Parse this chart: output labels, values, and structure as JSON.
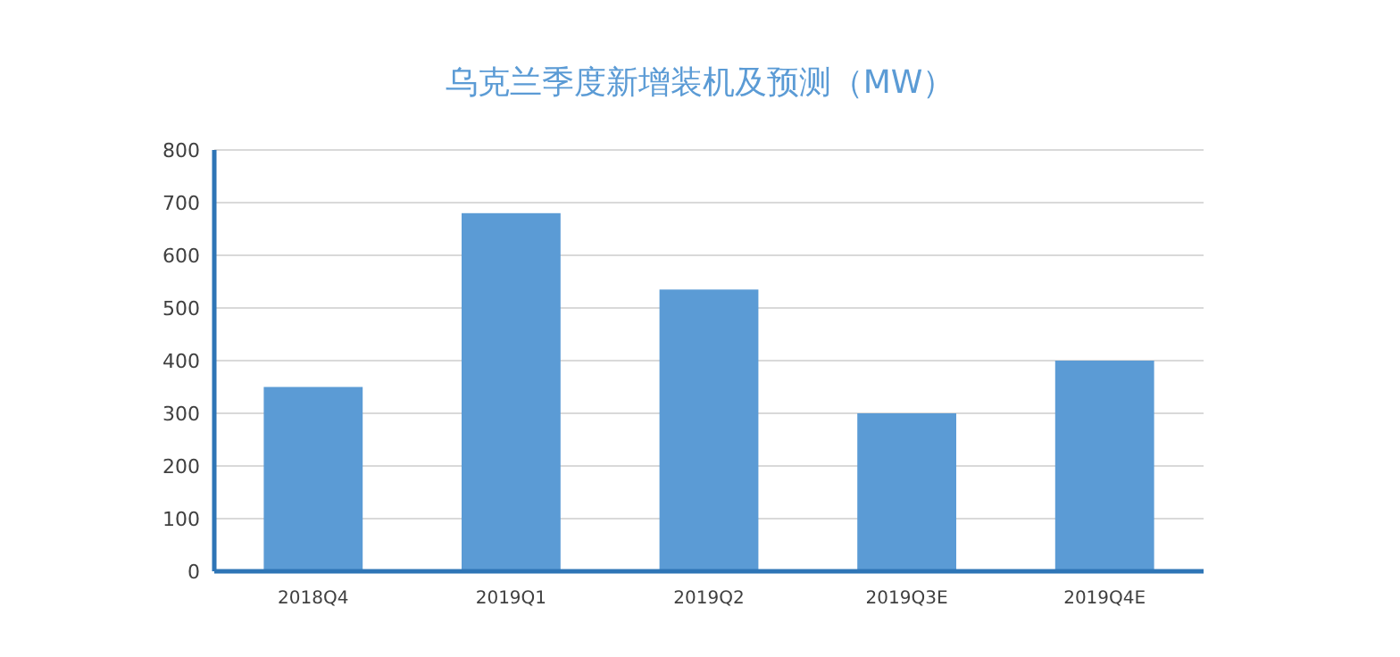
{
  "chart_data": {
    "type": "bar",
    "title": "乌克兰季度新增装机及预测（MW）",
    "categories": [
      "2018Q4",
      "2019Q1",
      "2019Q2",
      "2019Q3E",
      "2019Q4E"
    ],
    "values": [
      350,
      680,
      535,
      300,
      400
    ],
    "color": "#5b9bd5",
    "ylim": [
      0,
      800
    ],
    "yticks": [
      0,
      100,
      200,
      300,
      400,
      500,
      600,
      700,
      800
    ],
    "grid": "y"
  }
}
